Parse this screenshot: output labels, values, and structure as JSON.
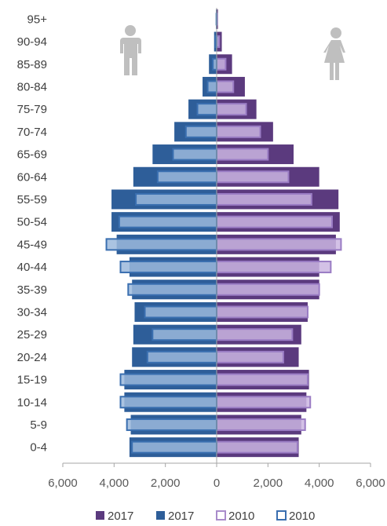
{
  "chart_data": {
    "type": "bar",
    "orientation": "horizontal",
    "categories": [
      "0-4",
      "5-9",
      "10-14",
      "15-19",
      "20-24",
      "25-29",
      "30-34",
      "35-39",
      "40-44",
      "45-49",
      "50-54",
      "55-59",
      "60-64",
      "65-69",
      "70-74",
      "75-79",
      "80-84",
      "85-89",
      "90-94",
      "95+"
    ],
    "x_ticks": [
      "6,000",
      "4,000",
      "2,000",
      "0",
      "2,000",
      "4,000",
      "6,000"
    ],
    "xlim": [
      -6000,
      6000
    ],
    "series": [
      {
        "name": "2017",
        "side": "female",
        "color": "#5b3a7e",
        "style": "filled",
        "values": [
          3200,
          3300,
          3500,
          3600,
          3200,
          3300,
          3550,
          4000,
          4000,
          4650,
          4800,
          4750,
          4000,
          3000,
          2200,
          1550,
          1100,
          600,
          200,
          50
        ]
      },
      {
        "name": "2017",
        "side": "male",
        "color": "#2e5e99",
        "style": "filled",
        "values": [
          3400,
          3350,
          3600,
          3600,
          3300,
          3250,
          3200,
          3300,
          3400,
          3900,
          4100,
          4100,
          3250,
          2500,
          1650,
          1100,
          550,
          300,
          100,
          30
        ]
      },
      {
        "name": "2010",
        "side": "female",
        "color": "#a98ccb",
        "style": "outline",
        "values": [
          3150,
          3450,
          3650,
          3550,
          2600,
          2950,
          3550,
          4000,
          4450,
          4850,
          4500,
          3700,
          2800,
          2000,
          1700,
          1150,
          650,
          350,
          100,
          20
        ]
      },
      {
        "name": "2010",
        "side": "male",
        "color": "#3a6fb0",
        "style": "outline",
        "values": [
          3300,
          3500,
          3750,
          3750,
          2700,
          2500,
          2800,
          3450,
          3750,
          4300,
          3800,
          3150,
          2300,
          1700,
          1200,
          750,
          350,
          150,
          50,
          10
        ]
      }
    ],
    "legend_position": "bottom",
    "grid": false,
    "icons": {
      "left": "male-figure-icon",
      "right": "female-figure-icon",
      "color": "#bfbfbf"
    }
  }
}
